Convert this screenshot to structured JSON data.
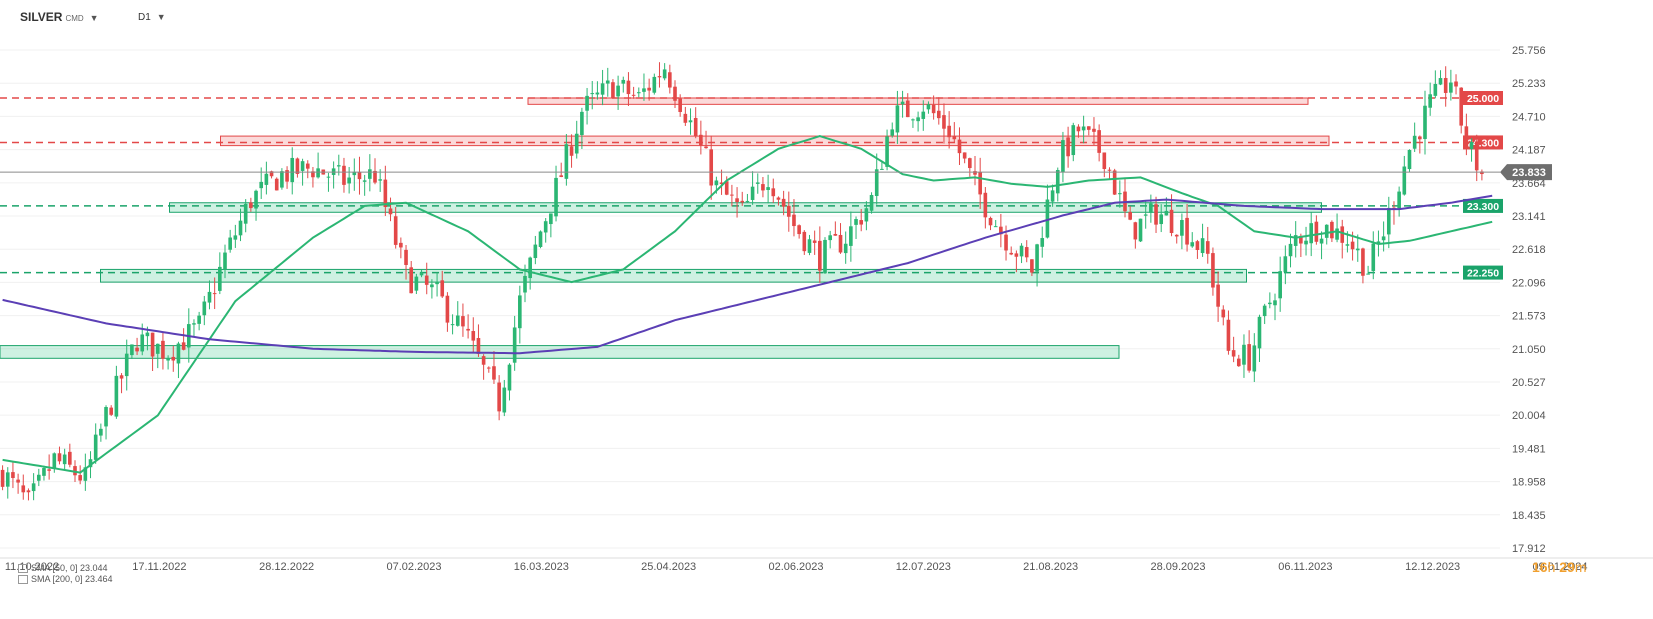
{
  "header": {
    "symbol": "SILVER",
    "symbol_sub": "CMD",
    "timeframe": "D1"
  },
  "timer": {
    "hours": "16",
    "h_unit": "h",
    "minutes": "29",
    "m_unit": "m"
  },
  "chart_data": {
    "type": "candlestick",
    "x_tick_labels": [
      "11.10.2022",
      "17.11.2022",
      "28.12.2022",
      "07.02.2023",
      "16.03.2023",
      "25.04.2023",
      "02.06.2023",
      "12.07.2023",
      "21.08.2023",
      "28.09.2023",
      "06.11.2023",
      "12.12.2023",
      "09.01.2024"
    ],
    "y_tick_labels": [
      "25.756",
      "25.233",
      "24.710",
      "24.187",
      "23.664",
      "23.141",
      "22.618",
      "22.096",
      "21.573",
      "21.050",
      "20.527",
      "20.004",
      "19.481",
      "18.958",
      "18.435",
      "17.912"
    ],
    "ylim": [
      17.912,
      26.1
    ],
    "last_price": "23.833",
    "anchors": [
      {
        "i": 0,
        "v": 19.1
      },
      {
        "i": 5,
        "v": 18.6
      },
      {
        "i": 10,
        "v": 19.3
      },
      {
        "i": 16,
        "v": 19.0
      },
      {
        "i": 20,
        "v": 20.0
      },
      {
        "i": 26,
        "v": 21.2
      },
      {
        "i": 32,
        "v": 21.0
      },
      {
        "i": 38,
        "v": 21.4
      },
      {
        "i": 43,
        "v": 22.5
      },
      {
        "i": 48,
        "v": 23.4
      },
      {
        "i": 54,
        "v": 23.8
      },
      {
        "i": 60,
        "v": 23.9
      },
      {
        "i": 66,
        "v": 23.7
      },
      {
        "i": 72,
        "v": 23.8
      },
      {
        "i": 78,
        "v": 22.2
      },
      {
        "i": 84,
        "v": 21.9
      },
      {
        "i": 90,
        "v": 21.2
      },
      {
        "i": 96,
        "v": 20.2
      },
      {
        "i": 100,
        "v": 21.8
      },
      {
        "i": 104,
        "v": 22.9
      },
      {
        "i": 108,
        "v": 23.8
      },
      {
        "i": 112,
        "v": 24.8
      },
      {
        "i": 118,
        "v": 25.2
      },
      {
        "i": 123,
        "v": 25.0
      },
      {
        "i": 128,
        "v": 25.5
      },
      {
        "i": 133,
        "v": 24.6
      },
      {
        "i": 138,
        "v": 23.6
      },
      {
        "i": 143,
        "v": 23.2
      },
      {
        "i": 148,
        "v": 23.8
      },
      {
        "i": 153,
        "v": 23.0
      },
      {
        "i": 158,
        "v": 22.5
      },
      {
        "i": 163,
        "v": 22.8
      },
      {
        "i": 168,
        "v": 23.4
      },
      {
        "i": 172,
        "v": 24.7
      },
      {
        "i": 178,
        "v": 24.9
      },
      {
        "i": 183,
        "v": 24.5
      },
      {
        "i": 188,
        "v": 23.6
      },
      {
        "i": 193,
        "v": 22.9
      },
      {
        "i": 199,
        "v": 22.3
      },
      {
        "i": 204,
        "v": 24.0
      },
      {
        "i": 208,
        "v": 24.5
      },
      {
        "i": 213,
        "v": 24.1
      },
      {
        "i": 218,
        "v": 22.9
      },
      {
        "i": 223,
        "v": 23.2
      },
      {
        "i": 228,
        "v": 23.0
      },
      {
        "i": 233,
        "v": 22.5
      },
      {
        "i": 237,
        "v": 21.0
      },
      {
        "i": 241,
        "v": 20.9
      },
      {
        "i": 245,
        "v": 21.8
      },
      {
        "i": 250,
        "v": 22.8
      },
      {
        "i": 255,
        "v": 23.0
      },
      {
        "i": 260,
        "v": 22.8
      },
      {
        "i": 264,
        "v": 22.3
      },
      {
        "i": 267,
        "v": 22.9
      },
      {
        "i": 272,
        "v": 24.2
      },
      {
        "i": 276,
        "v": 24.9
      },
      {
        "i": 280,
        "v": 25.3
      },
      {
        "i": 283,
        "v": 24.3
      },
      {
        "i": 286,
        "v": 23.8
      }
    ],
    "series": [
      {
        "name": "SMA [50, 0] 23.044",
        "color": "#2bb673",
        "values": [
          {
            "i": 0,
            "v": 19.3
          },
          {
            "i": 15,
            "v": 19.1
          },
          {
            "i": 30,
            "v": 20.0
          },
          {
            "i": 45,
            "v": 21.8
          },
          {
            "i": 60,
            "v": 22.8
          },
          {
            "i": 70,
            "v": 23.3
          },
          {
            "i": 78,
            "v": 23.35
          },
          {
            "i": 90,
            "v": 22.9
          },
          {
            "i": 100,
            "v": 22.3
          },
          {
            "i": 110,
            "v": 22.1
          },
          {
            "i": 120,
            "v": 22.3
          },
          {
            "i": 130,
            "v": 22.9
          },
          {
            "i": 140,
            "v": 23.7
          },
          {
            "i": 150,
            "v": 24.2
          },
          {
            "i": 158,
            "v": 24.4
          },
          {
            "i": 166,
            "v": 24.2
          },
          {
            "i": 174,
            "v": 23.8
          },
          {
            "i": 180,
            "v": 23.7
          },
          {
            "i": 188,
            "v": 23.75
          },
          {
            "i": 195,
            "v": 23.65
          },
          {
            "i": 202,
            "v": 23.6
          },
          {
            "i": 210,
            "v": 23.7
          },
          {
            "i": 220,
            "v": 23.75
          },
          {
            "i": 228,
            "v": 23.5
          },
          {
            "i": 235,
            "v": 23.3
          },
          {
            "i": 242,
            "v": 22.9
          },
          {
            "i": 250,
            "v": 22.8
          },
          {
            "i": 258,
            "v": 22.9
          },
          {
            "i": 266,
            "v": 22.7
          },
          {
            "i": 272,
            "v": 22.75
          },
          {
            "i": 280,
            "v": 22.9
          },
          {
            "i": 288,
            "v": 23.05
          }
        ]
      },
      {
        "name": "SMA [200, 0] 23.464",
        "color": "#5b3fb5",
        "values": [
          {
            "i": 0,
            "v": 21.82
          },
          {
            "i": 20,
            "v": 21.45
          },
          {
            "i": 40,
            "v": 21.2
          },
          {
            "i": 60,
            "v": 21.05
          },
          {
            "i": 80,
            "v": 21.0
          },
          {
            "i": 100,
            "v": 20.98
          },
          {
            "i": 115,
            "v": 21.08
          },
          {
            "i": 130,
            "v": 21.5
          },
          {
            "i": 145,
            "v": 21.8
          },
          {
            "i": 160,
            "v": 22.1
          },
          {
            "i": 175,
            "v": 22.4
          },
          {
            "i": 190,
            "v": 22.8
          },
          {
            "i": 205,
            "v": 23.15
          },
          {
            "i": 215,
            "v": 23.35
          },
          {
            "i": 225,
            "v": 23.4
          },
          {
            "i": 240,
            "v": 23.3
          },
          {
            "i": 255,
            "v": 23.25
          },
          {
            "i": 270,
            "v": 23.25
          },
          {
            "i": 280,
            "v": 23.35
          },
          {
            "i": 288,
            "v": 23.46
          }
        ]
      }
    ],
    "zones": [
      {
        "kind": "resistance",
        "ylo": 24.9,
        "yhi": 25.0,
        "x0": 0.352,
        "x1": 0.872
      },
      {
        "kind": "resistance",
        "ylo": 24.25,
        "yhi": 24.4,
        "x0": 0.147,
        "x1": 0.886
      },
      {
        "kind": "support",
        "ylo": 23.2,
        "yhi": 23.35,
        "x0": 0.113,
        "x1": 0.881
      },
      {
        "kind": "support",
        "ylo": 22.1,
        "yhi": 22.3,
        "x0": 0.067,
        "x1": 0.831
      },
      {
        "kind": "support",
        "ylo": 20.9,
        "yhi": 21.1,
        "x0": 0.0,
        "x1": 0.746
      }
    ],
    "levels": [
      {
        "value": 25.0,
        "label": "25.000",
        "color": "#e34848"
      },
      {
        "value": 24.3,
        "label": "24.300",
        "color": "#e34848"
      },
      {
        "value": 23.3,
        "label": "23.300",
        "color": "#1aa36a"
      },
      {
        "value": 22.25,
        "label": "22.250",
        "color": "#1aa36a"
      }
    ],
    "up_color": "#2bb673",
    "down_color": "#e34848",
    "grid": true
  }
}
